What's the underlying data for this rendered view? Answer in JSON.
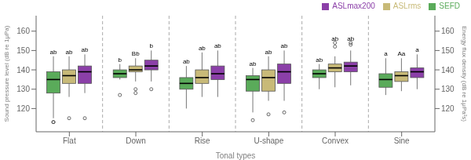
{
  "chart_data": {
    "type": "box",
    "xlabel": "Tonal types",
    "ylabel": "Sound pressure level (dB re 1μPa)",
    "y2label": "Energy flux density (dB re 1μPa²s)",
    "categories": [
      "Flat",
      "Down",
      "Rise",
      "U-shape",
      "Convex",
      "Sine"
    ],
    "series": [
      {
        "name": "SEFD",
        "color": "#5aab5a",
        "values": [
          {
            "q1": 128,
            "median": 135,
            "q3": 139,
            "whislo": 115,
            "whishi": 147,
            "fliers": [
              113,
              113
            ]
          },
          {
            "q1": 136,
            "median": 138,
            "q3": 140,
            "whislo": 135,
            "whishi": 143,
            "fliers": [
              127
            ]
          },
          {
            "q1": 130,
            "median": 133,
            "q3": 136,
            "whislo": 120,
            "whishi": 142,
            "fliers": []
          },
          {
            "q1": 129,
            "median": 135,
            "q3": 137,
            "whislo": 118,
            "whishi": 141,
            "fliers": [
              114
            ]
          },
          {
            "q1": 136,
            "median": 138,
            "q3": 140,
            "whislo": 130,
            "whishi": 143,
            "fliers": []
          },
          {
            "q1": 131,
            "median": 135,
            "q3": 138,
            "whislo": 127,
            "whishi": 146,
            "fliers": []
          }
        ],
        "annotations": [
          "ab",
          "b",
          "ab",
          "ab",
          "ab",
          "a"
        ]
      },
      {
        "name": "ASLrms",
        "color": "#c8ba78",
        "values": [
          {
            "q1": 133,
            "median": 137,
            "q3": 140,
            "whislo": 126,
            "whishi": 147,
            "fliers": [
              115
            ]
          },
          {
            "q1": 139,
            "median": 140,
            "q3": 142,
            "whislo": 134,
            "whishi": 146,
            "fliers": [
              128,
              130
            ]
          },
          {
            "q1": 133,
            "median": 136,
            "q3": 140,
            "whislo": 126,
            "whishi": 149,
            "fliers": []
          },
          {
            "q1": 129,
            "median": 136,
            "q3": 140,
            "whislo": 124,
            "whishi": 147,
            "fliers": [
              117
            ]
          },
          {
            "q1": 139,
            "median": 141,
            "q3": 143,
            "whislo": 131,
            "whishi": 147,
            "fliers": [
              152,
              154
            ]
          },
          {
            "q1": 134,
            "median": 137,
            "q3": 139,
            "whislo": 129,
            "whishi": 146,
            "fliers": []
          }
        ],
        "annotations": [
          "ab",
          "Bb",
          "ab",
          "ab",
          "ab",
          "Aa"
        ]
      },
      {
        "name": "ASLmax200",
        "color": "#8b3fa8",
        "values": [
          {
            "q1": 133,
            "median": 139,
            "q3": 142,
            "whislo": 128,
            "whishi": 148,
            "fliers": [
              115
            ]
          },
          {
            "q1": 140,
            "median": 142,
            "q3": 145,
            "whislo": 134,
            "whishi": 150,
            "fliers": [
              130
            ]
          },
          {
            "q1": 135,
            "median": 138,
            "q3": 142,
            "whislo": 126,
            "whishi": 150,
            "fliers": []
          },
          {
            "q1": 133,
            "median": 139,
            "q3": 143,
            "whislo": 124,
            "whishi": 150,
            "fliers": [
              118
            ]
          },
          {
            "q1": 139,
            "median": 142,
            "q3": 144,
            "whislo": 132,
            "whishi": 150,
            "fliers": [
              153,
              154
            ]
          },
          {
            "q1": 136,
            "median": 139,
            "q3": 141,
            "whislo": 130,
            "whishi": 148,
            "fliers": []
          }
        ],
        "annotations": [
          "ab",
          "b",
          "ab",
          "ab",
          "ab",
          "a"
        ]
      }
    ],
    "ylim": [
      108,
      168
    ],
    "yticks": [
      120,
      130,
      140,
      150,
      160
    ],
    "y2lim": [
      108,
      168
    ],
    "y2ticks": [
      120,
      130,
      140,
      150,
      160
    ],
    "legend": "upper right"
  }
}
